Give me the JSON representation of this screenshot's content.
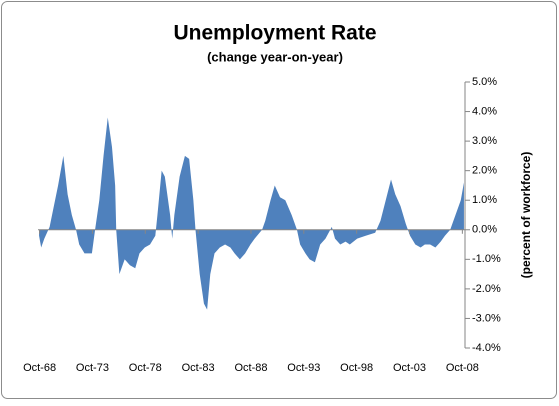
{
  "chart_data": {
    "type": "area",
    "title": "Unemployment Rate",
    "subtitle": "(change year-on-year)",
    "y_label": "(percent of workforce)",
    "color": "#4f81bd",
    "x": [
      1968.7,
      1968.9,
      1969.2,
      1969.7,
      1970.1,
      1970.5,
      1971.0,
      1971.4,
      1971.8,
      1972.2,
      1972.5,
      1973.0,
      1973.7,
      1974.0,
      1974.4,
      1974.8,
      1975.2,
      1975.6,
      1975.9,
      1976.0,
      1976.3,
      1976.8,
      1977.3,
      1977.8,
      1978.2,
      1978.7,
      1979.2,
      1979.7,
      1979.9,
      1980.3,
      1980.6,
      1981.1,
      1981.3,
      1981.5,
      1982.0,
      1982.5,
      1982.9,
      1983.3,
      1983.5,
      1983.9,
      1984.3,
      1984.6,
      1984.9,
      1985.3,
      1985.8,
      1986.3,
      1986.8,
      1987.2,
      1987.7,
      1988.2,
      1988.7,
      1989.1,
      1989.8,
      1990.1,
      1990.6,
      1991.0,
      1991.5,
      1992.0,
      1992.6,
      1993.1,
      1993.4,
      1993.9,
      1994.3,
      1994.8,
      1995.3,
      1995.8,
      1996.4,
      1996.7,
      1997.2,
      1997.7,
      1998.1,
      1998.8,
      1999.6,
      2000.5,
      2001.0,
      2001.5,
      2002.0,
      2002.4,
      2002.9,
      2003.4,
      2003.8,
      2004.3,
      2004.8,
      2005.2,
      2005.7,
      2006.2,
      2006.7,
      2007.1,
      2007.6,
      2008.1,
      2008.6,
      2008.9
    ],
    "values": [
      -0.2,
      -0.6,
      -0.3,
      0.1,
      0.8,
      1.5,
      2.5,
      1.2,
      0.5,
      0.0,
      -0.5,
      -0.8,
      -0.8,
      0.0,
      1.0,
      2.5,
      3.8,
      2.8,
      1.5,
      0.0,
      -1.5,
      -1.0,
      -1.2,
      -1.3,
      -0.8,
      -0.6,
      -0.5,
      -0.2,
      0.5,
      2.0,
      1.8,
      0.5,
      -0.3,
      0.5,
      1.8,
      2.5,
      2.4,
      1.0,
      0.0,
      -1.5,
      -2.5,
      -2.7,
      -1.5,
      -0.8,
      -0.6,
      -0.5,
      -0.6,
      -0.8,
      -1.0,
      -0.8,
      -0.5,
      -0.3,
      0.0,
      0.3,
      1.0,
      1.5,
      1.1,
      1.0,
      0.5,
      0.0,
      -0.5,
      -0.8,
      -1.0,
      -1.1,
      -0.5,
      -0.3,
      0.1,
      -0.3,
      -0.5,
      -0.4,
      -0.5,
      -0.3,
      -0.2,
      -0.1,
      0.3,
      1.0,
      1.7,
      1.2,
      0.8,
      0.2,
      -0.2,
      -0.5,
      -0.6,
      -0.5,
      -0.5,
      -0.6,
      -0.4,
      -0.2,
      0.0,
      0.5,
      1.0,
      1.6
    ],
    "xlim": [
      1968.6,
      2009.0
    ],
    "xticks": [
      {
        "value": 1968.75,
        "label": "Oct-68"
      },
      {
        "value": 1973.75,
        "label": "Oct-73"
      },
      {
        "value": 1978.75,
        "label": "Oct-78"
      },
      {
        "value": 1983.75,
        "label": "Oct-83"
      },
      {
        "value": 1988.75,
        "label": "Oct-88"
      },
      {
        "value": 1993.75,
        "label": "Oct-93"
      },
      {
        "value": 1998.75,
        "label": "Oct-98"
      },
      {
        "value": 2003.75,
        "label": "Oct-03"
      },
      {
        "value": 2008.75,
        "label": "Oct-08"
      }
    ],
    "ylim": [
      -4,
      5
    ],
    "yticks": [
      {
        "value": 5,
        "label": "5.0%"
      },
      {
        "value": 4,
        "label": "4.0%"
      },
      {
        "value": 3,
        "label": "3.0%"
      },
      {
        "value": 2,
        "label": "2.0%"
      },
      {
        "value": 1,
        "label": "1.0%"
      },
      {
        "value": 0,
        "label": "0.0%"
      },
      {
        "value": -1,
        "label": "-1.0%"
      },
      {
        "value": -2,
        "label": "-2.0%"
      },
      {
        "value": -3,
        "label": "-3.0%"
      },
      {
        "value": -4,
        "label": "-4.0%"
      }
    ],
    "y_axis_side": "right"
  }
}
